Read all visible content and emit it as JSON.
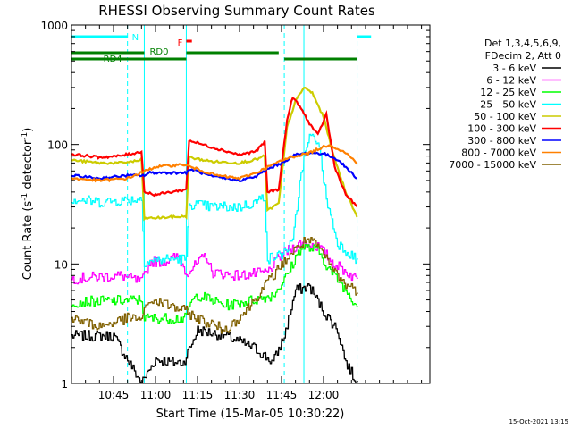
{
  "chart_data": {
    "type": "line",
    "title": "RHESSI Observing Summary Count Rates",
    "xlabel": "Start Time (15-Mar-05 10:30:22)",
    "ylabel_main": "Count Rate (s",
    "ylabel_sup1": "-1",
    "ylabel_mid": " detector",
    "ylabel_sup2": "-1",
    "ylabel_end": ")",
    "yscale": "log",
    "ylim": [
      1,
      1000
    ],
    "xlim_min": [
      0,
      128
    ],
    "yticks": [
      {
        "value": 1,
        "label": "1"
      },
      {
        "value": 10,
        "label": "10"
      },
      {
        "value": 100,
        "label": "100"
      },
      {
        "value": 1000,
        "label": "1000"
      }
    ],
    "xticks": [
      {
        "min": 15,
        "label": "10:45"
      },
      {
        "min": 30,
        "label": "11:00"
      },
      {
        "min": 45,
        "label": "11:15"
      },
      {
        "min": 60,
        "label": "11:30"
      },
      {
        "min": 75,
        "label": "11:45"
      },
      {
        "min": 90,
        "label": "12:00"
      }
    ],
    "legend_placement": "right",
    "legend_header": [
      "Det 1,3,4,5,6,9,",
      "FDecim 2, Att 0"
    ],
    "series": [
      {
        "name": "3 - 6 keV",
        "color": "#000000",
        "points": [
          [
            0,
            2.5
          ],
          [
            15,
            2.5
          ],
          [
            25,
            1.0
          ],
          [
            30,
            1.6
          ],
          [
            35,
            1.5
          ],
          [
            40,
            1.5
          ],
          [
            45,
            2.8
          ],
          [
            55,
            2.5
          ],
          [
            65,
            2.0
          ],
          [
            72,
            1.5
          ],
          [
            76,
            2.5
          ],
          [
            80,
            6.0
          ],
          [
            85,
            6.5
          ],
          [
            90,
            4.0
          ],
          [
            95,
            2.8
          ],
          [
            98,
            1.5
          ],
          [
            102,
            1.0
          ]
        ]
      },
      {
        "name": "6 - 12 keV",
        "color": "#ff00ff",
        "points": [
          [
            0,
            7.5
          ],
          [
            10,
            7.8
          ],
          [
            18,
            8.0
          ],
          [
            25,
            7.0
          ],
          [
            28,
            10.5
          ],
          [
            33,
            10.5
          ],
          [
            38,
            11.5
          ],
          [
            41,
            8.5
          ],
          [
            45,
            10.0
          ],
          [
            48,
            12.0
          ],
          [
            50,
            8.5
          ],
          [
            60,
            8.0
          ],
          [
            70,
            8.5
          ],
          [
            75,
            12.0
          ],
          [
            82,
            15.0
          ],
          [
            88,
            14.0
          ],
          [
            94,
            10.0
          ],
          [
            100,
            8.0
          ],
          [
            102,
            7.5
          ]
        ]
      },
      {
        "name": "12 - 25 keV",
        "color": "#00ff00",
        "points": [
          [
            0,
            4.8
          ],
          [
            25,
            5.0
          ],
          [
            26,
            3.5
          ],
          [
            41,
            3.5
          ],
          [
            42,
            4.5
          ],
          [
            45,
            5.5
          ],
          [
            55,
            4.5
          ],
          [
            65,
            5.0
          ],
          [
            72,
            5.5
          ],
          [
            77,
            8.0
          ],
          [
            82,
            14.0
          ],
          [
            88,
            13.0
          ],
          [
            92,
            9.0
          ],
          [
            97,
            6.5
          ],
          [
            102,
            4.5
          ]
        ]
      },
      {
        "name": "25 - 50 keV",
        "color": "#00ffff",
        "points": [
          [
            0,
            35
          ],
          [
            10,
            33
          ],
          [
            18,
            34
          ],
          [
            24,
            35
          ],
          [
            25,
            35
          ],
          [
            26,
            10.5
          ],
          [
            35,
            11
          ],
          [
            41,
            11
          ],
          [
            42,
            32
          ],
          [
            50,
            30
          ],
          [
            60,
            30
          ],
          [
            66,
            33
          ],
          [
            69,
            37
          ],
          [
            70,
            11
          ],
          [
            75,
            12
          ],
          [
            79,
            15
          ],
          [
            82,
            60
          ],
          [
            85,
            115
          ],
          [
            88,
            110
          ],
          [
            91,
            35
          ],
          [
            95,
            15
          ],
          [
            100,
            12
          ],
          [
            102,
            10.5
          ]
        ]
      },
      {
        "name": "50 - 100 keV",
        "color": "#cccc00",
        "points": [
          [
            0,
            74
          ],
          [
            10,
            70
          ],
          [
            17,
            70
          ],
          [
            24,
            73
          ],
          [
            25,
            76
          ],
          [
            26,
            24
          ],
          [
            41,
            25
          ],
          [
            42,
            78
          ],
          [
            50,
            72
          ],
          [
            60,
            70
          ],
          [
            66,
            75
          ],
          [
            69,
            80
          ],
          [
            70,
            28
          ],
          [
            74,
            32
          ],
          [
            77,
            140
          ],
          [
            80,
            230
          ],
          [
            83,
            300
          ],
          [
            86,
            270
          ],
          [
            90,
            170
          ],
          [
            94,
            75
          ],
          [
            98,
            40
          ],
          [
            101,
            28
          ],
          [
            102,
            25
          ]
        ]
      },
      {
        "name": "100 - 300 keV",
        "color": "#ff0000",
        "points": [
          [
            0,
            83
          ],
          [
            10,
            78
          ],
          [
            17,
            80
          ],
          [
            24,
            86
          ],
          [
            25,
            88
          ],
          [
            26,
            40
          ],
          [
            30,
            38
          ],
          [
            41,
            42
          ],
          [
            42,
            108
          ],
          [
            50,
            95
          ],
          [
            60,
            82
          ],
          [
            66,
            88
          ],
          [
            69,
            105
          ],
          [
            70,
            40
          ],
          [
            74,
            42
          ],
          [
            77,
            160
          ],
          [
            79,
            250
          ],
          [
            82,
            200
          ],
          [
            85,
            150
          ],
          [
            88,
            120
          ],
          [
            91,
            180
          ],
          [
            94,
            65
          ],
          [
            98,
            38
          ],
          [
            102,
            30
          ]
        ]
      },
      {
        "name": "300 - 800 keV",
        "color": "#0000ff",
        "points": [
          [
            0,
            55
          ],
          [
            10,
            52
          ],
          [
            20,
            55
          ],
          [
            26,
            55
          ],
          [
            28,
            58
          ],
          [
            41,
            58
          ],
          [
            43,
            62
          ],
          [
            50,
            54
          ],
          [
            60,
            50
          ],
          [
            66,
            54
          ],
          [
            70,
            62
          ],
          [
            75,
            70
          ],
          [
            80,
            82
          ],
          [
            85,
            85
          ],
          [
            90,
            84
          ],
          [
            95,
            75
          ],
          [
            100,
            58
          ],
          [
            102,
            52
          ]
        ]
      },
      {
        "name": "800 - 7000 keV",
        "color": "#ff8000",
        "points": [
          [
            0,
            52
          ],
          [
            10,
            50
          ],
          [
            20,
            52
          ],
          [
            30,
            65
          ],
          [
            40,
            68
          ],
          [
            45,
            62
          ],
          [
            52,
            55
          ],
          [
            60,
            52
          ],
          [
            66,
            58
          ],
          [
            72,
            68
          ],
          [
            78,
            78
          ],
          [
            85,
            85
          ],
          [
            92,
            100
          ],
          [
            98,
            85
          ],
          [
            102,
            70
          ]
        ]
      },
      {
        "name": "7000 - 15000 keV",
        "color": "#806000",
        "points": [
          [
            0,
            3.5
          ],
          [
            10,
            3.0
          ],
          [
            20,
            3.5
          ],
          [
            25,
            3.5
          ],
          [
            28,
            5.0
          ],
          [
            35,
            4.5
          ],
          [
            41,
            4.0
          ],
          [
            45,
            3.5
          ],
          [
            55,
            2.8
          ],
          [
            62,
            4.0
          ],
          [
            70,
            7.0
          ],
          [
            78,
            12.0
          ],
          [
            84,
            16.0
          ],
          [
            88,
            14.0
          ],
          [
            92,
            10.0
          ],
          [
            97,
            7.0
          ],
          [
            102,
            6.0
          ]
        ]
      }
    ],
    "annotations": [
      {
        "text": "N",
        "color": "#00ffff",
        "segments": [
          [
            0,
            20
          ],
          [
            102,
            107
          ]
        ]
      },
      {
        "text": "F",
        "color": "#ff0000",
        "segments": [
          [
            41,
            43
          ]
        ]
      },
      {
        "text": "RD0",
        "color": "#008000",
        "segments": [
          [
            0,
            26
          ],
          [
            41,
            74
          ]
        ]
      },
      {
        "text": "RD4",
        "color": "#008000",
        "segments": [
          [
            0,
            41
          ],
          [
            76,
            102
          ]
        ]
      }
    ],
    "vlines": [
      {
        "min": 0,
        "color": "#00ffff",
        "style": "solid"
      },
      {
        "min": 20,
        "color": "#00ffff",
        "style": "dashed"
      },
      {
        "min": 26,
        "color": "#00ffff",
        "style": "solid"
      },
      {
        "min": 41,
        "color": "#00ffff",
        "style": "solid"
      },
      {
        "min": 76,
        "color": "#00ffff",
        "style": "dashed"
      },
      {
        "min": 83,
        "color": "#00ffff",
        "style": "solid"
      },
      {
        "min": 102,
        "color": "#00ffff",
        "style": "dashed"
      }
    ]
  },
  "footer_timestamp": "15-Oct-2021 13:15"
}
